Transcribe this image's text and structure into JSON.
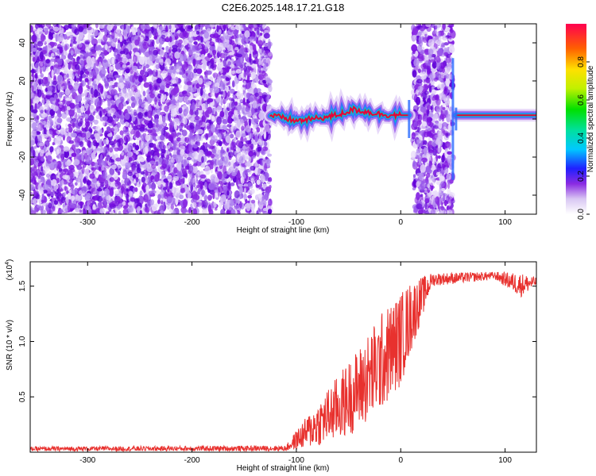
{
  "title": "C2E6.2025.148.17.21.G18",
  "chart_data": [
    {
      "type": "heatmap",
      "title": "C2E6.2025.148.17.21.G18",
      "xlabel": "Height of straight line (km)",
      "ylabel": "Frequency (Hz)",
      "xlim": [
        -355,
        130
      ],
      "ylim": [
        -50,
        50
      ],
      "xticks": [
        -300,
        -200,
        -100,
        0,
        100
      ],
      "yticks": [
        -40,
        -20,
        0,
        20,
        40
      ],
      "colorbar": {
        "label": "Normalized spectral amplitude",
        "range": [
          0,
          1
        ],
        "ticks": [
          0.0,
          0.2,
          0.4,
          0.6,
          0.8
        ]
      },
      "noise_regions": [
        [
          -355,
          -125
        ],
        [
          12,
          50
        ]
      ],
      "signal_track": [
        {
          "x": -125,
          "y": 2
        },
        {
          "x": -100,
          "y": -1
        },
        {
          "x": -85,
          "y": 0
        },
        {
          "x": -70,
          "y": 1
        },
        {
          "x": -55,
          "y": 3
        },
        {
          "x": -45,
          "y": 5
        },
        {
          "x": -35,
          "y": 4
        },
        {
          "x": -25,
          "y": 3
        },
        {
          "x": -10,
          "y": 2
        },
        {
          "x": 5,
          "y": 2
        },
        {
          "x": 55,
          "y": 2
        },
        {
          "x": 100,
          "y": 2
        },
        {
          "x": 130,
          "y": 2
        }
      ],
      "colors": {
        "signal_core": "#e8003a",
        "noise": "#8a2be2"
      }
    },
    {
      "type": "line",
      "xlabel": "Height of straight line (km)",
      "ylabel": "SNR (10 * v/v)",
      "yscale_note": "(x10",
      "yscale_exp": "4",
      "xlim": [
        -355,
        130
      ],
      "ylim": [
        0,
        1.72
      ],
      "xticks": [
        -300,
        -200,
        -100,
        0,
        100
      ],
      "yticks": [
        0.5,
        1.0,
        1.5
      ],
      "series": [
        {
          "color": "#e8312e",
          "envelope": [
            {
              "x": -355,
              "lo": 0.01,
              "hi": 0.05
            },
            {
              "x": -110,
              "lo": 0.01,
              "hi": 0.06
            },
            {
              "x": -100,
              "lo": 0.02,
              "hi": 0.2
            },
            {
              "x": -80,
              "lo": 0.05,
              "hi": 0.45
            },
            {
              "x": -60,
              "lo": 0.1,
              "hi": 0.7
            },
            {
              "x": -40,
              "lo": 0.2,
              "hi": 0.95
            },
            {
              "x": -20,
              "lo": 0.35,
              "hi": 1.25
            },
            {
              "x": 0,
              "lo": 0.6,
              "hi": 1.45
            },
            {
              "x": 10,
              "lo": 0.9,
              "hi": 1.55
            },
            {
              "x": 30,
              "lo": 1.5,
              "hi": 1.62
            },
            {
              "x": 90,
              "lo": 1.56,
              "hi": 1.63
            },
            {
              "x": 115,
              "lo": 1.4,
              "hi": 1.62
            },
            {
              "x": 130,
              "lo": 1.5,
              "hi": 1.58
            }
          ]
        }
      ]
    }
  ]
}
